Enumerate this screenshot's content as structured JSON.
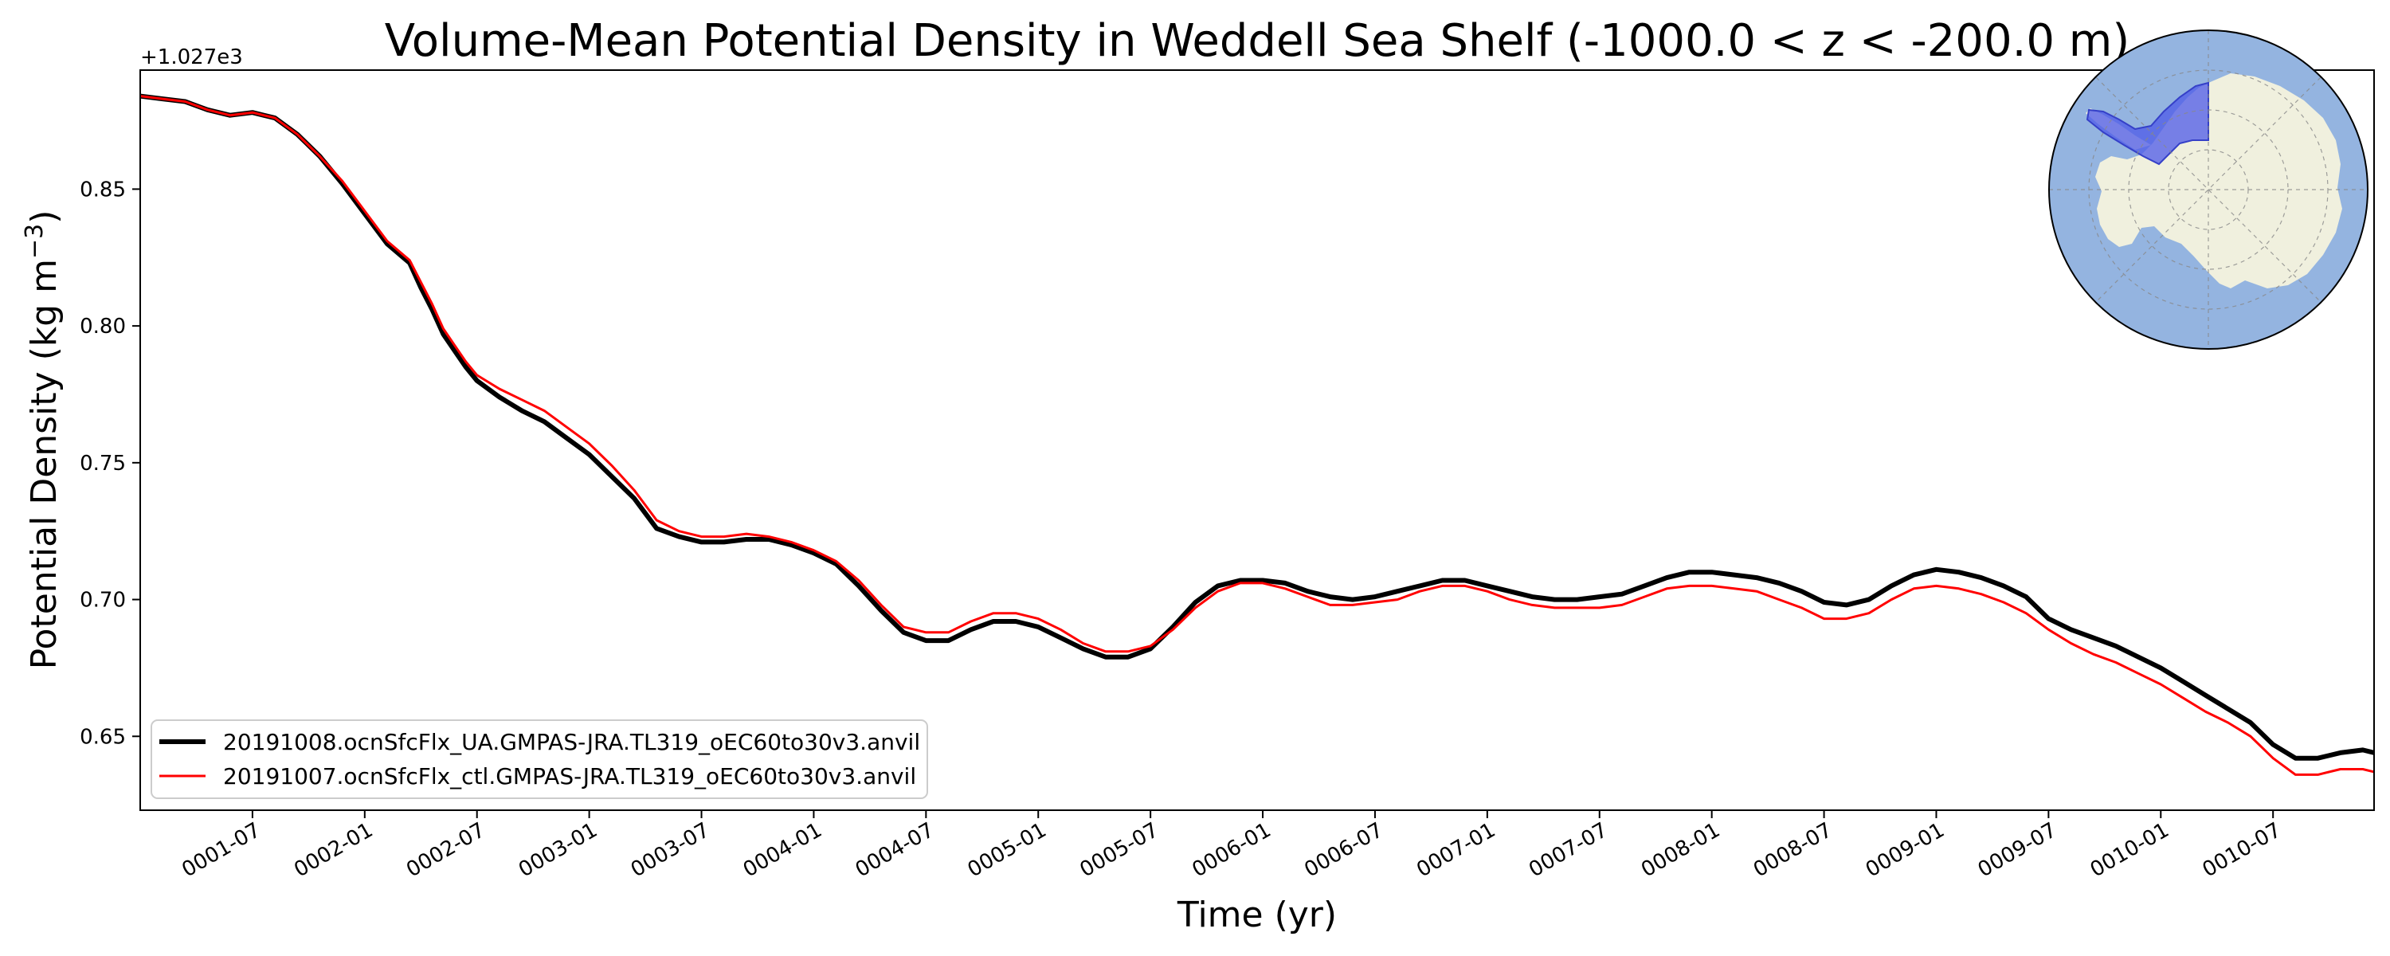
{
  "chart_data": {
    "type": "line",
    "title": "Volume-Mean Potential Density in Weddell Sea Shelf (-1000.0 < z < -200.0 m)",
    "xlabel": "Time (yr)",
    "ylabel_main": "Potential Density (kg m",
    "ylabel_exponent": "−3",
    "ylabel_close": ")",
    "y_offset_label": "+1.027e3",
    "xlim": [
      0.0,
      9.95
    ],
    "ylim": [
      0.623,
      0.8935
    ],
    "yticks": [
      0.65,
      0.7,
      0.75,
      0.8,
      0.85
    ],
    "ytick_labels": [
      "0.65",
      "0.70",
      "0.75",
      "0.80",
      "0.85"
    ],
    "xticks": [
      0.5,
      1.0,
      1.5,
      2.0,
      2.5,
      3.0,
      3.5,
      4.0,
      4.5,
      5.0,
      5.5,
      6.0,
      6.5,
      7.0,
      7.5,
      8.0,
      8.5,
      9.0,
      9.5
    ],
    "xtick_labels": [
      "0001-07",
      "0002-01",
      "0002-07",
      "0003-01",
      "0003-07",
      "0004-01",
      "0004-07",
      "0005-01",
      "0005-07",
      "0006-01",
      "0006-07",
      "0007-01",
      "0007-07",
      "0008-01",
      "0008-07",
      "0009-01",
      "0009-07",
      "0010-01",
      "0010-07"
    ],
    "legend_placement": "lower-left",
    "grid": false,
    "series": [
      {
        "name": "20191008.ocnSfcFlx_UA.GMPAS-JRA.TL319_oEC60to30v3.anvil",
        "color": "#000000",
        "linewidth": 6,
        "x": [
          0.0,
          0.1,
          0.2,
          0.3,
          0.4,
          0.5,
          0.55,
          0.6,
          0.7,
          0.8,
          0.9,
          1.0,
          1.1,
          1.2,
          1.25,
          1.3,
          1.35,
          1.4,
          1.45,
          1.5,
          1.6,
          1.7,
          1.8,
          1.9,
          2.0,
          2.1,
          2.2,
          2.3,
          2.4,
          2.5,
          2.6,
          2.7,
          2.8,
          2.9,
          3.0,
          3.1,
          3.2,
          3.3,
          3.4,
          3.5,
          3.6,
          3.7,
          3.8,
          3.9,
          4.0,
          4.1,
          4.2,
          4.3,
          4.4,
          4.5,
          4.6,
          4.7,
          4.8,
          4.9,
          5.0,
          5.1,
          5.2,
          5.3,
          5.4,
          5.5,
          5.6,
          5.7,
          5.8,
          5.9,
          6.0,
          6.1,
          6.2,
          6.3,
          6.4,
          6.5,
          6.6,
          6.7,
          6.8,
          6.9,
          7.0,
          7.1,
          7.2,
          7.3,
          7.4,
          7.5,
          7.6,
          7.7,
          7.8,
          7.9,
          8.0,
          8.1,
          8.2,
          8.3,
          8.4,
          8.5,
          8.6,
          8.7,
          8.8,
          8.9,
          9.0,
          9.1,
          9.2,
          9.3,
          9.4,
          9.5,
          9.6,
          9.7,
          9.8,
          9.9,
          9.95
        ],
        "y": [
          0.884,
          0.883,
          0.882,
          0.879,
          0.877,
          0.878,
          0.877,
          0.876,
          0.87,
          0.862,
          0.852,
          0.841,
          0.83,
          0.823,
          0.814,
          0.806,
          0.797,
          0.791,
          0.785,
          0.78,
          0.774,
          0.769,
          0.765,
          0.759,
          0.753,
          0.745,
          0.737,
          0.726,
          0.723,
          0.721,
          0.721,
          0.722,
          0.722,
          0.72,
          0.717,
          0.713,
          0.705,
          0.696,
          0.688,
          0.685,
          0.685,
          0.689,
          0.692,
          0.692,
          0.69,
          0.686,
          0.682,
          0.679,
          0.679,
          0.682,
          0.69,
          0.699,
          0.705,
          0.707,
          0.707,
          0.706,
          0.703,
          0.701,
          0.7,
          0.701,
          0.703,
          0.705,
          0.707,
          0.707,
          0.705,
          0.703,
          0.701,
          0.7,
          0.7,
          0.701,
          0.702,
          0.705,
          0.708,
          0.71,
          0.71,
          0.709,
          0.708,
          0.706,
          0.703,
          0.699,
          0.698,
          0.7,
          0.705,
          0.709,
          0.711,
          0.71,
          0.708,
          0.705,
          0.701,
          0.693,
          0.689,
          0.686,
          0.683,
          0.679,
          0.675,
          0.67,
          0.665,
          0.66,
          0.655,
          0.647,
          0.642,
          0.642,
          0.644,
          0.645,
          0.644
        ]
      },
      {
        "name": "20191007.ocnSfcFlx_ctl.GMPAS-JRA.TL319_oEC60to30v3.anvil",
        "color": "#ff0000",
        "linewidth": 3,
        "x": [
          0.0,
          0.1,
          0.2,
          0.3,
          0.4,
          0.5,
          0.55,
          0.6,
          0.7,
          0.8,
          0.9,
          1.0,
          1.1,
          1.2,
          1.25,
          1.3,
          1.35,
          1.4,
          1.45,
          1.5,
          1.6,
          1.7,
          1.8,
          1.9,
          2.0,
          2.1,
          2.2,
          2.3,
          2.4,
          2.5,
          2.6,
          2.7,
          2.8,
          2.9,
          3.0,
          3.1,
          3.2,
          3.3,
          3.4,
          3.5,
          3.6,
          3.7,
          3.8,
          3.9,
          4.0,
          4.1,
          4.2,
          4.3,
          4.4,
          4.5,
          4.6,
          4.7,
          4.8,
          4.9,
          5.0,
          5.1,
          5.2,
          5.3,
          5.4,
          5.5,
          5.6,
          5.7,
          5.8,
          5.9,
          6.0,
          6.1,
          6.2,
          6.3,
          6.4,
          6.5,
          6.6,
          6.7,
          6.8,
          6.9,
          7.0,
          7.1,
          7.2,
          7.3,
          7.4,
          7.5,
          7.6,
          7.7,
          7.8,
          7.9,
          8.0,
          8.1,
          8.2,
          8.3,
          8.4,
          8.5,
          8.6,
          8.7,
          8.8,
          8.9,
          9.0,
          9.1,
          9.2,
          9.3,
          9.4,
          9.5,
          9.6,
          9.7,
          9.8,
          9.9,
          9.95
        ],
        "y": [
          0.884,
          0.883,
          0.882,
          0.879,
          0.877,
          0.878,
          0.877,
          0.876,
          0.87,
          0.862,
          0.853,
          0.842,
          0.831,
          0.824,
          0.816,
          0.808,
          0.799,
          0.793,
          0.787,
          0.782,
          0.777,
          0.773,
          0.769,
          0.763,
          0.757,
          0.749,
          0.74,
          0.729,
          0.725,
          0.723,
          0.723,
          0.724,
          0.723,
          0.721,
          0.718,
          0.714,
          0.707,
          0.698,
          0.69,
          0.688,
          0.688,
          0.692,
          0.695,
          0.695,
          0.693,
          0.689,
          0.684,
          0.681,
          0.681,
          0.683,
          0.689,
          0.697,
          0.703,
          0.706,
          0.706,
          0.704,
          0.701,
          0.698,
          0.698,
          0.699,
          0.7,
          0.703,
          0.705,
          0.705,
          0.703,
          0.7,
          0.698,
          0.697,
          0.697,
          0.697,
          0.698,
          0.701,
          0.704,
          0.705,
          0.705,
          0.704,
          0.703,
          0.7,
          0.697,
          0.693,
          0.693,
          0.695,
          0.7,
          0.704,
          0.705,
          0.704,
          0.702,
          0.699,
          0.695,
          0.689,
          0.684,
          0.68,
          0.677,
          0.673,
          0.669,
          0.664,
          0.659,
          0.655,
          0.65,
          0.642,
          0.636,
          0.636,
          0.638,
          0.638,
          0.637
        ]
      }
    ],
    "inset_map": {
      "description_icon": "antarctica-polar-map-icon",
      "ocean_color": "#94b4e0",
      "land_color": "#f0f0de",
      "region_color": "#4e59e8"
    }
  }
}
